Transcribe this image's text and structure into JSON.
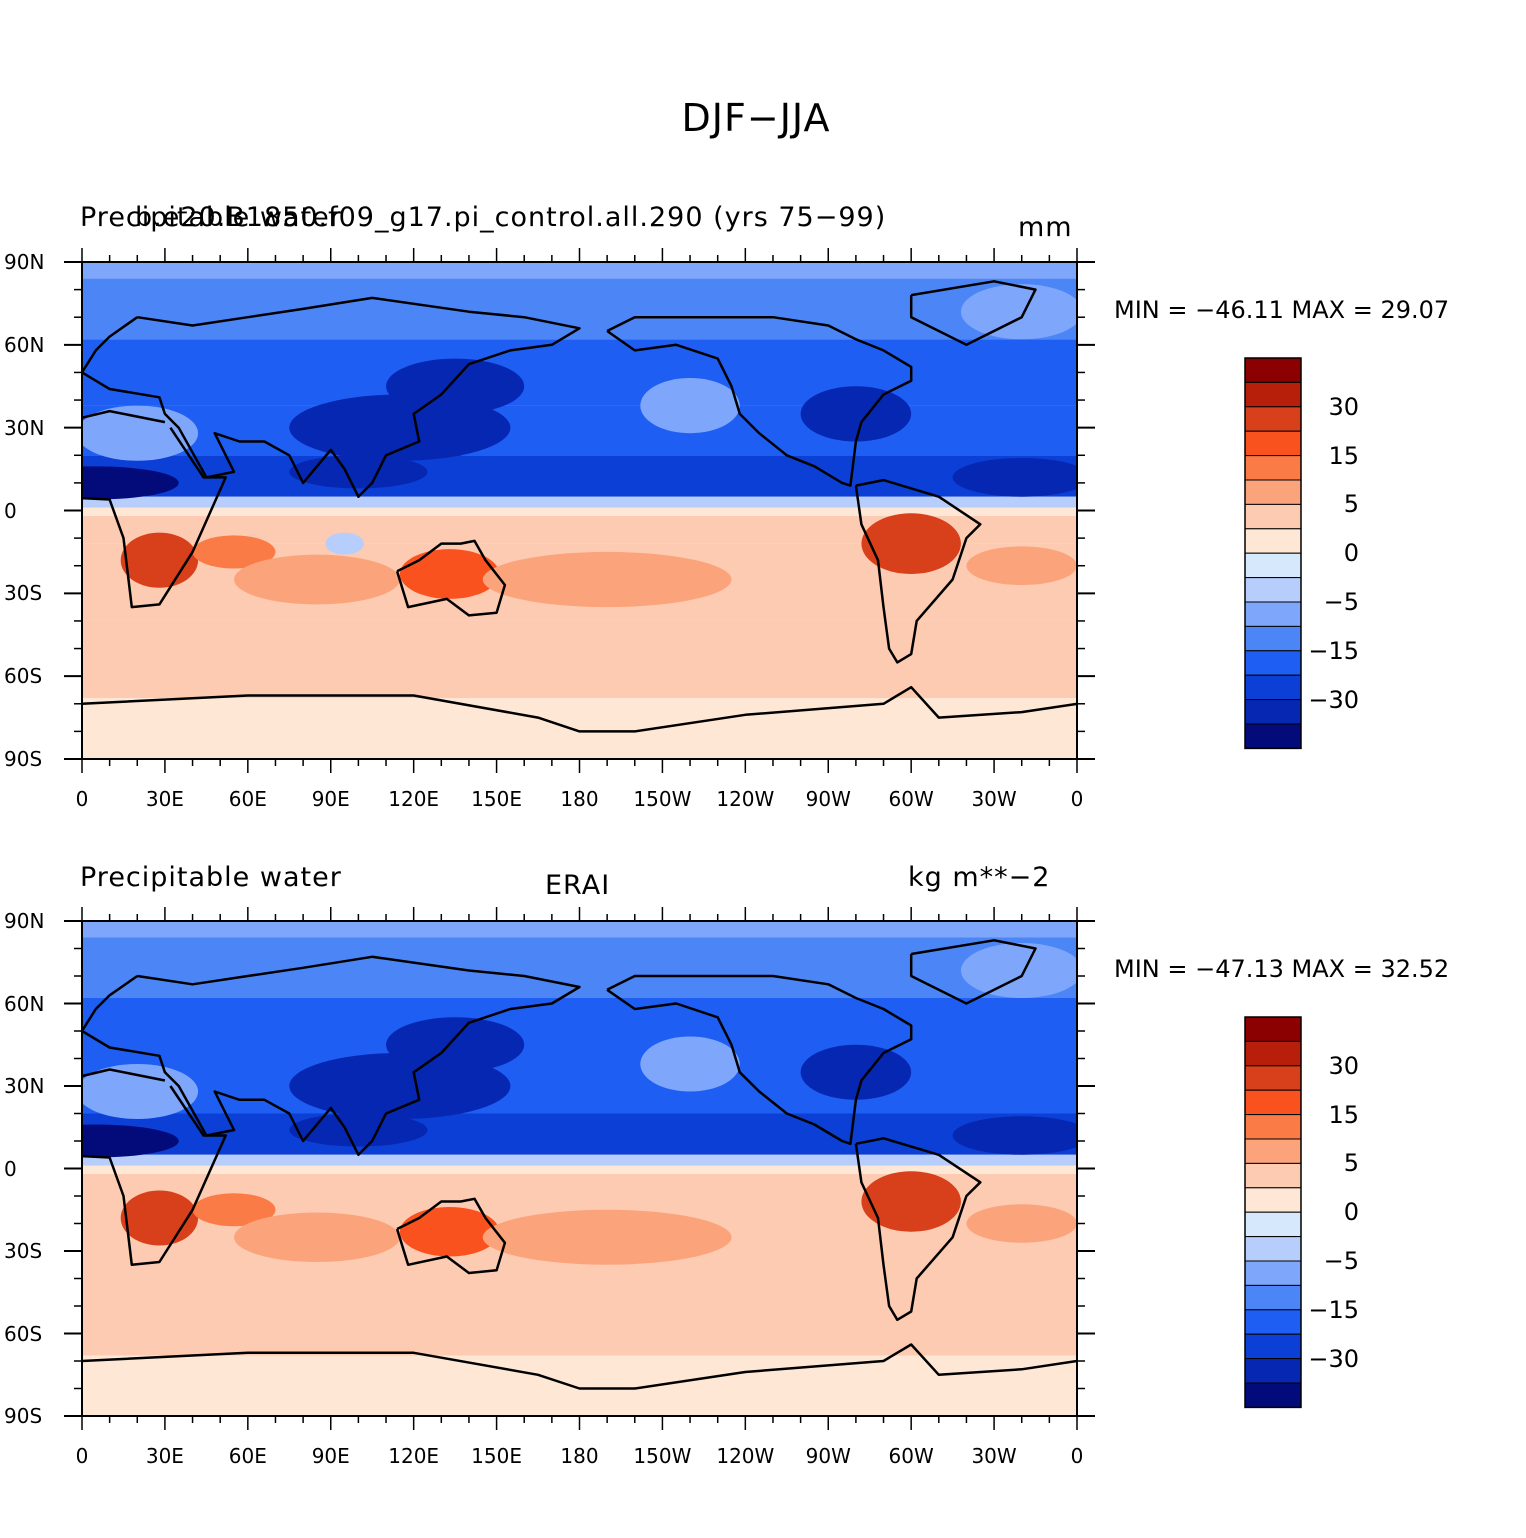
{
  "title": "DJF−JJA",
  "panels": [
    {
      "left_string": "Precipitable water",
      "center_string": "b.e20.B1850.f09_g17.pi_control.all.290 (yrs 75−99)",
      "right_string": "mm",
      "min_max": "MIN = −46.11  MAX =   29.07"
    },
    {
      "left_string": "Precipitable water",
      "center_string": "ERAI",
      "right_string": "kg m**−2",
      "min_max": "MIN = −47.13  MAX =   32.52"
    }
  ],
  "lat_labels": [
    "90N",
    "60N",
    "30N",
    "0",
    "30S",
    "60S",
    "90S"
  ],
  "lon_labels": [
    "0",
    "30E",
    "60E",
    "90E",
    "120E",
    "150E",
    "180",
    "150W",
    "120W",
    "90W",
    "60W",
    "30W",
    "0"
  ],
  "colorbar": {
    "colors": [
      "#8b0000",
      "#b81f0a",
      "#d7401a",
      "#fa521e",
      "#fa7b46",
      "#fba47c",
      "#fdcbb2",
      "#fee8d5",
      "#d5e8fc",
      "#b7cefc",
      "#7ea7fb",
      "#4c86f6",
      "#1f5ef3",
      "#0b3fd5",
      "#0627b2",
      "#030a7a"
    ],
    "labels": [
      "30",
      "15",
      "5",
      "0",
      "−5",
      "−15",
      "−30"
    ]
  },
  "chart_data": [
    {
      "type": "heatmap",
      "title": "DJF−JJA",
      "left_string": "Precipitable water",
      "center_string": "b.e20.B1850.f09_g17.pi_control.all.290 (yrs 75−99)",
      "units": "mm",
      "min": -46.11,
      "max": 29.07,
      "x_range": [
        0,
        360
      ],
      "y_range": [
        -90,
        90
      ],
      "contour_levels": [
        -40,
        -35,
        -30,
        -25,
        -15,
        -10,
        -5,
        -2,
        0,
        2,
        5,
        10,
        15,
        25,
        30
      ],
      "zonal_mean_pattern": [
        {
          "lat": 80,
          "value": -5
        },
        {
          "lat": 60,
          "value": -12
        },
        {
          "lat": 40,
          "value": -22
        },
        {
          "lat": 20,
          "value": -30
        },
        {
          "lat": 10,
          "value": -32
        },
        {
          "lat": 0,
          "value": 1
        },
        {
          "lat": -15,
          "value": 12
        },
        {
          "lat": -30,
          "value": 10
        },
        {
          "lat": -50,
          "value": 5
        },
        {
          "lat": -75,
          "value": 2
        }
      ]
    },
    {
      "type": "heatmap",
      "title": "DJF−JJA",
      "left_string": "Precipitable water",
      "center_string": "ERAI",
      "units": "kg m**−2",
      "min": -47.13,
      "max": 32.52,
      "x_range": [
        0,
        360
      ],
      "y_range": [
        -90,
        90
      ],
      "contour_levels": [
        -40,
        -35,
        -30,
        -25,
        -15,
        -10,
        -5,
        -2,
        0,
        2,
        5,
        10,
        15,
        25,
        30
      ],
      "zonal_mean_pattern": [
        {
          "lat": 80,
          "value": -5
        },
        {
          "lat": 60,
          "value": -12
        },
        {
          "lat": 40,
          "value": -22
        },
        {
          "lat": 20,
          "value": -30
        },
        {
          "lat": 10,
          "value": -32
        },
        {
          "lat": 0,
          "value": 2
        },
        {
          "lat": -15,
          "value": 12
        },
        {
          "lat": -30,
          "value": 10
        },
        {
          "lat": -50,
          "value": 5
        },
        {
          "lat": -75,
          "value": 2
        }
      ]
    }
  ]
}
